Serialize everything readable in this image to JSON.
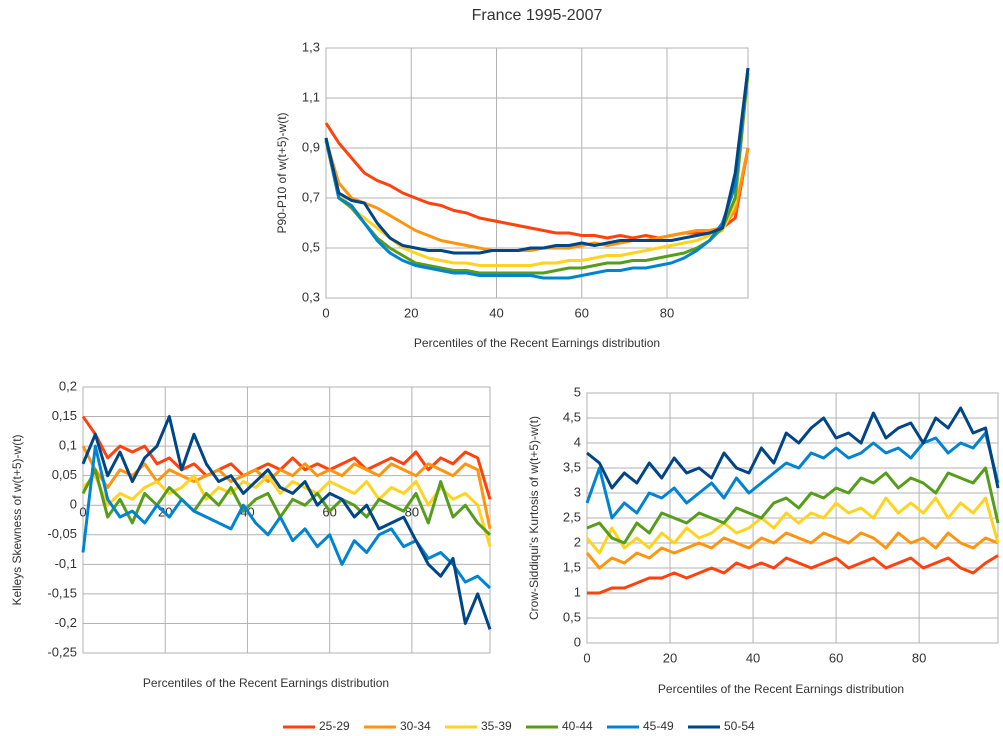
{
  "chart_data": [
    {
      "type": "line",
      "title": "France 1995-2007",
      "xlabel": "Percentiles of the Recent Earnings distribution",
      "ylabel": "P90-P10 of w(t+5)-w(t)",
      "x": [
        0,
        3,
        6,
        9,
        12,
        15,
        18,
        21,
        24,
        27,
        30,
        33,
        36,
        39,
        42,
        45,
        48,
        51,
        54,
        57,
        60,
        63,
        66,
        69,
        72,
        75,
        78,
        81,
        84,
        87,
        90,
        93,
        96,
        99
      ],
      "xlim": [
        0,
        99
      ],
      "xticks": [
        0,
        20,
        40,
        60,
        80
      ],
      "ylim": [
        0.3,
        1.3
      ],
      "yticks": [
        {
          "value": 0.3,
          "label": "0,3"
        },
        {
          "value": 0.5,
          "label": "0,5"
        },
        {
          "value": 0.7,
          "label": "0,7"
        },
        {
          "value": 0.9,
          "label": "0,9"
        },
        {
          "value": 1.1,
          "label": "1,1"
        },
        {
          "value": 1.3,
          "label": "1,3"
        }
      ],
      "grid": true,
      "series": [
        {
          "name": "25-29",
          "color": "#ff420e",
          "values": [
            1.0,
            0.92,
            0.86,
            0.8,
            0.77,
            0.75,
            0.72,
            0.7,
            0.68,
            0.67,
            0.65,
            0.64,
            0.62,
            0.61,
            0.6,
            0.59,
            0.58,
            0.57,
            0.56,
            0.56,
            0.55,
            0.55,
            0.54,
            0.55,
            0.54,
            0.55,
            0.54,
            0.55,
            0.56,
            0.56,
            0.57,
            0.58,
            0.62,
            0.9
          ]
        },
        {
          "name": "30-34",
          "color": "#ff950e",
          "values": [
            0.93,
            0.76,
            0.7,
            0.68,
            0.66,
            0.63,
            0.6,
            0.57,
            0.55,
            0.53,
            0.52,
            0.51,
            0.5,
            0.49,
            0.49,
            0.49,
            0.49,
            0.5,
            0.5,
            0.5,
            0.51,
            0.52,
            0.51,
            0.52,
            0.53,
            0.53,
            0.54,
            0.55,
            0.56,
            0.57,
            0.57,
            0.58,
            0.65,
            0.9
          ]
        },
        {
          "name": "35-39",
          "color": "#ffd320",
          "values": [
            0.93,
            0.72,
            0.66,
            0.62,
            0.58,
            0.54,
            0.5,
            0.48,
            0.46,
            0.45,
            0.44,
            0.44,
            0.43,
            0.43,
            0.43,
            0.43,
            0.43,
            0.44,
            0.44,
            0.45,
            0.45,
            0.46,
            0.47,
            0.47,
            0.48,
            0.49,
            0.5,
            0.51,
            0.52,
            0.53,
            0.55,
            0.57,
            0.68,
            1.2
          ]
        },
        {
          "name": "40-44",
          "color": "#579d1c",
          "values": [
            0.93,
            0.7,
            0.66,
            0.6,
            0.54,
            0.5,
            0.47,
            0.44,
            0.43,
            0.42,
            0.41,
            0.41,
            0.4,
            0.4,
            0.4,
            0.4,
            0.4,
            0.4,
            0.41,
            0.42,
            0.42,
            0.43,
            0.44,
            0.44,
            0.45,
            0.45,
            0.46,
            0.47,
            0.48,
            0.5,
            0.53,
            0.58,
            0.7,
            1.2
          ]
        },
        {
          "name": "45-49",
          "color": "#0084d1",
          "values": [
            0.94,
            0.7,
            0.67,
            0.6,
            0.53,
            0.48,
            0.45,
            0.43,
            0.42,
            0.41,
            0.4,
            0.4,
            0.39,
            0.39,
            0.39,
            0.39,
            0.39,
            0.38,
            0.38,
            0.38,
            0.39,
            0.4,
            0.41,
            0.41,
            0.42,
            0.42,
            0.43,
            0.44,
            0.46,
            0.49,
            0.53,
            0.6,
            0.75,
            1.22
          ]
        },
        {
          "name": "50-54",
          "color": "#004586",
          "values": [
            0.94,
            0.72,
            0.69,
            0.68,
            0.6,
            0.54,
            0.51,
            0.5,
            0.49,
            0.49,
            0.48,
            0.48,
            0.48,
            0.49,
            0.49,
            0.49,
            0.5,
            0.5,
            0.51,
            0.51,
            0.52,
            0.51,
            0.52,
            0.53,
            0.53,
            0.53,
            0.53,
            0.53,
            0.54,
            0.55,
            0.56,
            0.58,
            0.8,
            1.22
          ]
        }
      ]
    },
    {
      "type": "line",
      "xlabel": "Percentiles of the Recent Earnings distribution",
      "ylabel": "Kelleys Skewness of w(t+5)-w(t)",
      "x": [
        0,
        3,
        6,
        9,
        12,
        15,
        18,
        21,
        24,
        27,
        30,
        33,
        36,
        39,
        42,
        45,
        48,
        51,
        54,
        57,
        60,
        63,
        66,
        69,
        72,
        75,
        78,
        81,
        84,
        87,
        90,
        93,
        96,
        99
      ],
      "xlim": [
        0,
        99
      ],
      "xticks": [
        0,
        20,
        40,
        60,
        80
      ],
      "ylim": [
        -0.25,
        0.2
      ],
      "yticks": [
        {
          "value": -0.25,
          "label": "-0,25"
        },
        {
          "value": -0.2,
          "label": "-0,2"
        },
        {
          "value": -0.15,
          "label": "-0,15"
        },
        {
          "value": -0.1,
          "label": "-0,1"
        },
        {
          "value": -0.05,
          "label": "-0,05"
        },
        0,
        {
          "value": 0.05,
          "label": "0,05"
        },
        {
          "value": 0.1,
          "label": "0,1"
        },
        {
          "value": 0.15,
          "label": "0,15"
        },
        {
          "value": 0.2,
          "label": "0,2"
        }
      ],
      "grid": true,
      "series": [
        {
          "color": "#ff420e",
          "values": [
            0.15,
            0.12,
            0.08,
            0.1,
            0.09,
            0.1,
            0.07,
            0.08,
            0.06,
            0.07,
            0.05,
            0.06,
            0.07,
            0.05,
            0.06,
            0.07,
            0.06,
            0.08,
            0.06,
            0.07,
            0.06,
            0.07,
            0.08,
            0.06,
            0.07,
            0.08,
            0.07,
            0.09,
            0.06,
            0.08,
            0.07,
            0.09,
            0.08,
            0.01
          ]
        },
        {
          "color": "#ff950e",
          "values": [
            0.1,
            0.06,
            0.03,
            0.06,
            0.05,
            0.07,
            0.04,
            0.06,
            0.05,
            0.04,
            0.05,
            0.06,
            0.04,
            0.05,
            0.06,
            0.04,
            0.06,
            0.05,
            0.07,
            0.05,
            0.06,
            0.05,
            0.07,
            0.06,
            0.05,
            0.07,
            0.06,
            0.05,
            0.07,
            0.06,
            0.05,
            0.07,
            0.06,
            -0.04
          ]
        },
        {
          "color": "#ffd320",
          "values": [
            0.03,
            0.05,
            0.0,
            0.02,
            0.01,
            0.03,
            0.04,
            0.02,
            0.03,
            0.05,
            0.01,
            0.03,
            0.02,
            0.04,
            0.03,
            0.05,
            0.02,
            0.04,
            0.03,
            0.02,
            0.04,
            0.03,
            0.02,
            0.04,
            0.01,
            0.03,
            0.02,
            0.04,
            0.0,
            0.03,
            0.01,
            0.02,
            0.0,
            -0.07
          ]
        },
        {
          "color": "#579d1c",
          "values": [
            0.02,
            0.06,
            -0.02,
            0.01,
            -0.03,
            0.02,
            0.0,
            0.03,
            0.01,
            -0.01,
            0.02,
            0.0,
            0.03,
            -0.01,
            0.01,
            0.02,
            -0.02,
            0.01,
            0.0,
            0.02,
            -0.01,
            0.01,
            0.0,
            -0.02,
            0.01,
            0.0,
            -0.01,
            0.02,
            -0.03,
            0.04,
            -0.02,
            0.0,
            -0.03,
            -0.05
          ]
        },
        {
          "color": "#0084d1",
          "values": [
            -0.08,
            0.1,
            0.01,
            -0.02,
            -0.01,
            -0.03,
            0.0,
            -0.02,
            0.01,
            -0.01,
            -0.02,
            -0.03,
            -0.04,
            0.0,
            -0.03,
            -0.05,
            -0.02,
            -0.06,
            -0.04,
            -0.07,
            -0.05,
            -0.1,
            -0.06,
            -0.08,
            -0.05,
            -0.04,
            -0.07,
            -0.06,
            -0.09,
            -0.08,
            -0.1,
            -0.13,
            -0.12,
            -0.14
          ]
        },
        {
          "color": "#004586",
          "values": [
            0.07,
            0.12,
            0.05,
            0.09,
            0.04,
            0.08,
            0.1,
            0.15,
            0.06,
            0.12,
            0.07,
            0.04,
            0.05,
            0.02,
            0.04,
            0.06,
            0.03,
            0.02,
            0.04,
            0.0,
            0.02,
            0.01,
            -0.02,
            0.0,
            -0.04,
            -0.03,
            -0.02,
            -0.06,
            -0.1,
            -0.12,
            -0.09,
            -0.2,
            -0.15,
            -0.21
          ]
        }
      ]
    },
    {
      "type": "line",
      "xlabel": "Percentiles of the Recent Earnings distribution",
      "ylabel": "Crow-Siddiqui's Kurtosis of w(t+5)-w(t)",
      "x": [
        0,
        3,
        6,
        9,
        12,
        15,
        18,
        21,
        24,
        27,
        30,
        33,
        36,
        39,
        42,
        45,
        48,
        51,
        54,
        57,
        60,
        63,
        66,
        69,
        72,
        75,
        78,
        81,
        84,
        87,
        90,
        93,
        96,
        99
      ],
      "xlim": [
        0,
        99
      ],
      "xticks": [
        0,
        20,
        40,
        60,
        80
      ],
      "ylim": [
        0,
        5
      ],
      "yticks": [
        0,
        {
          "value": 0.5,
          "label": "0,5"
        },
        1,
        {
          "value": 1.5,
          "label": "1,5"
        },
        2,
        {
          "value": 2.5,
          "label": "2,5"
        },
        3,
        {
          "value": 3.5,
          "label": "3,5"
        },
        4,
        {
          "value": 4.5,
          "label": "4,5"
        },
        5
      ],
      "grid": true,
      "series": [
        {
          "color": "#ff420e",
          "values": [
            1.0,
            1.0,
            1.1,
            1.1,
            1.2,
            1.3,
            1.3,
            1.4,
            1.3,
            1.4,
            1.5,
            1.4,
            1.6,
            1.5,
            1.6,
            1.5,
            1.7,
            1.6,
            1.5,
            1.6,
            1.7,
            1.5,
            1.6,
            1.7,
            1.5,
            1.6,
            1.7,
            1.5,
            1.6,
            1.7,
            1.5,
            1.4,
            1.6,
            1.75
          ]
        },
        {
          "color": "#ff950e",
          "values": [
            1.8,
            1.5,
            1.7,
            1.6,
            1.8,
            1.7,
            1.9,
            1.8,
            1.9,
            2.0,
            1.9,
            2.1,
            2.0,
            1.9,
            2.1,
            2.0,
            2.2,
            2.1,
            2.0,
            2.2,
            2.1,
            2.0,
            2.2,
            2.1,
            1.9,
            2.2,
            2.0,
            2.1,
            1.9,
            2.2,
            2.0,
            1.9,
            2.1,
            2.0
          ]
        },
        {
          "color": "#ffd320",
          "values": [
            2.1,
            1.8,
            2.3,
            1.9,
            2.1,
            1.9,
            2.2,
            2.0,
            2.3,
            2.1,
            2.2,
            2.4,
            2.2,
            2.3,
            2.5,
            2.3,
            2.6,
            2.4,
            2.6,
            2.5,
            2.8,
            2.6,
            2.7,
            2.5,
            2.9,
            2.6,
            2.8,
            2.6,
            2.9,
            2.5,
            2.8,
            2.6,
            2.9,
            2.0
          ]
        },
        {
          "color": "#579d1c",
          "values": [
            2.3,
            2.4,
            2.1,
            2.0,
            2.4,
            2.2,
            2.6,
            2.5,
            2.4,
            2.6,
            2.5,
            2.4,
            2.7,
            2.6,
            2.5,
            2.8,
            2.9,
            2.7,
            3.0,
            2.9,
            3.1,
            3.0,
            3.3,
            3.2,
            3.4,
            3.1,
            3.3,
            3.2,
            3.0,
            3.4,
            3.3,
            3.2,
            3.5,
            2.4
          ]
        },
        {
          "color": "#0084d1",
          "values": [
            2.8,
            3.5,
            2.5,
            2.8,
            2.6,
            3.0,
            2.9,
            3.1,
            2.8,
            3.0,
            3.2,
            2.9,
            3.3,
            3.0,
            3.2,
            3.4,
            3.6,
            3.5,
            3.8,
            3.7,
            3.9,
            3.7,
            3.8,
            4.0,
            3.8,
            3.9,
            3.7,
            4.0,
            4.1,
            3.8,
            4.0,
            3.9,
            4.2,
            3.2
          ]
        },
        {
          "color": "#004586",
          "values": [
            3.8,
            3.6,
            3.1,
            3.4,
            3.2,
            3.6,
            3.3,
            3.7,
            3.4,
            3.5,
            3.3,
            3.8,
            3.5,
            3.4,
            3.9,
            3.6,
            4.2,
            4.0,
            4.3,
            4.5,
            4.1,
            4.2,
            4.0,
            4.6,
            4.1,
            4.3,
            4.4,
            4.0,
            4.5,
            4.3,
            4.7,
            4.2,
            4.3,
            3.1
          ]
        }
      ]
    }
  ]
}
